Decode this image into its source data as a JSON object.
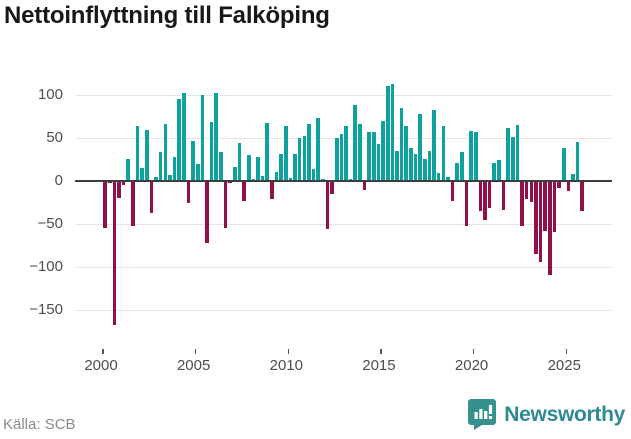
{
  "title": "Nettoinflyttning till Falköping",
  "source": "Källa: SCB",
  "brand": {
    "name": "Newsworthy",
    "logo_icon": "speech-bubble-bar-chart",
    "color": "#2e8b94",
    "icon_color": "#35908e"
  },
  "colors": {
    "positive": "#0ea29e",
    "negative": "#921049",
    "gridline": "#e4e4e4",
    "zero_axis": "#3d3d3d",
    "tick_label": "#4d4d4d"
  },
  "chart_data": {
    "type": "bar",
    "title": "Nettoinflyttning till Falköping",
    "xlabel": "",
    "ylabel": "",
    "x_unit": "quarter",
    "start_period": "2000 Q1",
    "end_period": "2025 Q4",
    "values": [
      -55,
      -2,
      -168,
      -20,
      -5,
      26,
      -53,
      64,
      15,
      59,
      -37,
      5,
      34,
      67,
      7,
      28,
      96,
      103,
      -26,
      47,
      20,
      100,
      -72,
      69,
      103,
      34,
      -55,
      -2,
      16,
      44,
      -23,
      30,
      2,
      28,
      6,
      68,
      -21,
      11,
      31,
      64,
      3,
      31,
      50,
      52,
      67,
      14,
      73,
      2,
      -56,
      -15,
      50,
      55,
      64,
      2,
      89,
      67,
      -11,
      57,
      57,
      43,
      70,
      111,
      113,
      35,
      85,
      64,
      38,
      32,
      78,
      26,
      35,
      83,
      9,
      64,
      5,
      -23,
      21,
      34,
      -52,
      58,
      57,
      -35,
      -45,
      -31,
      21,
      24,
      -34,
      62,
      51,
      65,
      -52,
      -21,
      -24,
      -85,
      -94,
      -58,
      -110,
      -59,
      -8,
      39,
      -12,
      8,
      46,
      -35
    ],
    "yticks": [
      100,
      50,
      0,
      -50,
      -100,
      -150
    ],
    "ytick_labels": [
      "100",
      "50",
      "0",
      "−50",
      "−100",
      "−150"
    ],
    "xtick_years": [
      2000,
      2005,
      2010,
      2015,
      2020,
      2025
    ],
    "xtick_labels": [
      "2000",
      "2005",
      "2010",
      "2015",
      "2020",
      "2025"
    ],
    "ylim": [
      -175,
      115
    ],
    "grid": "horizontal-only",
    "legend": "none"
  }
}
